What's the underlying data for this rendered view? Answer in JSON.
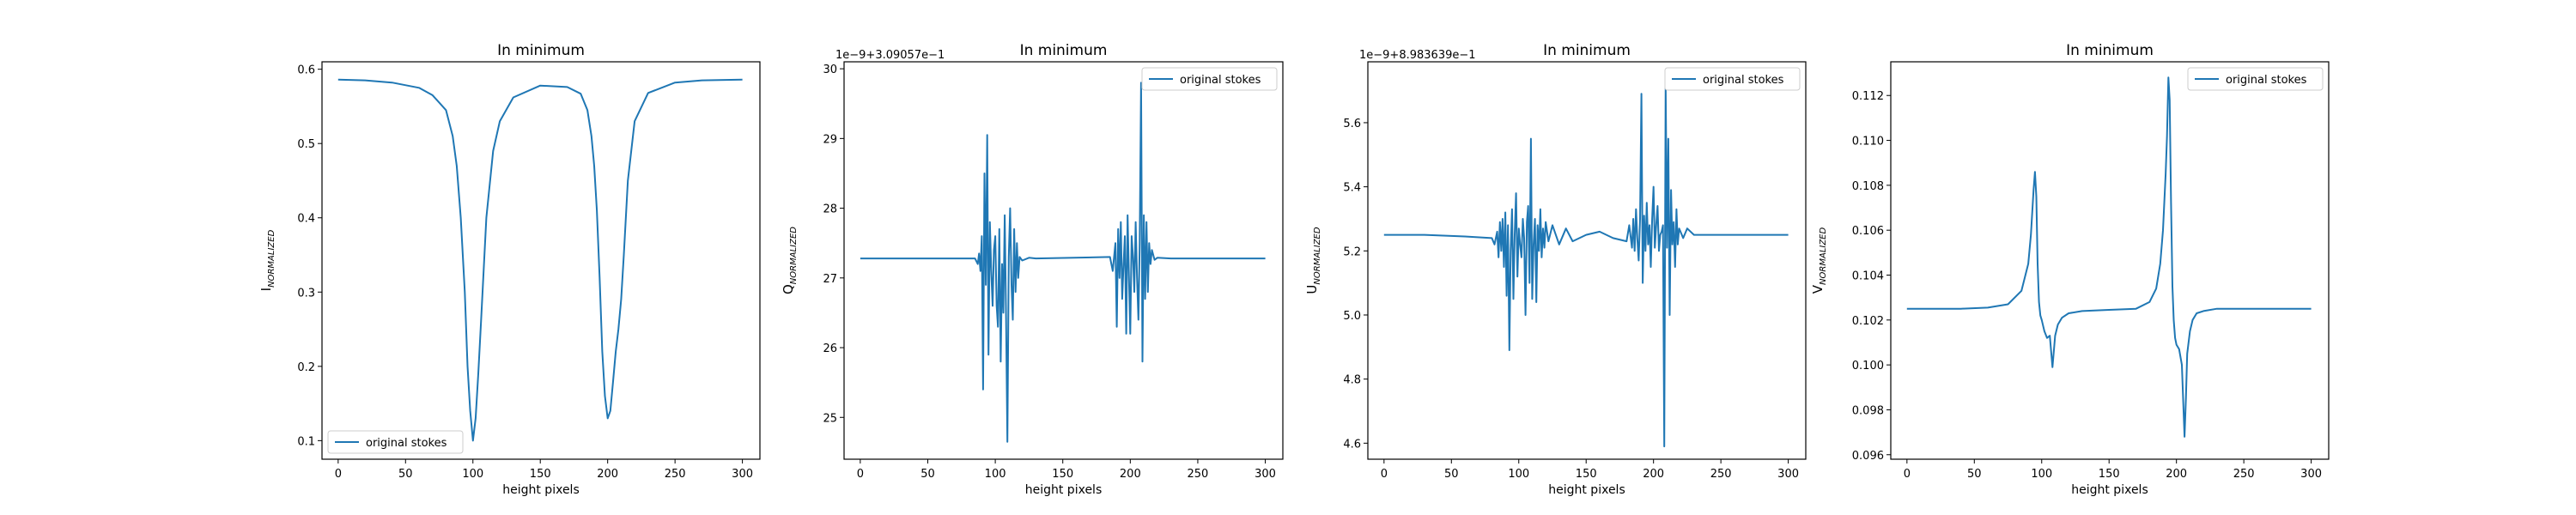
{
  "chart_data": [
    {
      "type": "line",
      "title": "In minimum",
      "xlabel": "height pixels",
      "ylabel_main": "I",
      "ylabel_sub": "NORMALIZED",
      "offset_text": "",
      "xlim": [
        -12,
        313
      ],
      "ylim": [
        0.075,
        0.61
      ],
      "xticks": [
        0,
        50,
        100,
        150,
        200,
        250,
        300
      ],
      "yticks": [
        0.1,
        0.2,
        0.3,
        0.4,
        0.5,
        0.6
      ],
      "ytick_labels": [
        "0.1",
        "0.2",
        "0.3",
        "0.4",
        "0.5",
        "0.6"
      ],
      "legend": "lower-left",
      "series": [
        {
          "name": "original stokes",
          "color": "#1f77b4",
          "x": [
            0,
            20,
            40,
            60,
            70,
            80,
            85,
            88,
            91,
            94,
            96,
            98,
            100,
            102,
            104,
            106,
            108,
            110,
            115,
            120,
            130,
            150,
            170,
            180,
            185,
            188,
            190,
            192,
            194,
            196,
            198,
            200,
            202,
            204,
            206,
            208,
            210,
            212,
            215,
            220,
            230,
            250,
            270,
            300
          ],
          "y": [
            0.586,
            0.585,
            0.582,
            0.575,
            0.565,
            0.545,
            0.51,
            0.47,
            0.4,
            0.3,
            0.2,
            0.14,
            0.1,
            0.13,
            0.19,
            0.26,
            0.33,
            0.4,
            0.49,
            0.53,
            0.562,
            0.578,
            0.576,
            0.567,
            0.545,
            0.51,
            0.47,
            0.41,
            0.32,
            0.22,
            0.16,
            0.13,
            0.14,
            0.18,
            0.22,
            0.25,
            0.29,
            0.35,
            0.45,
            0.53,
            0.568,
            0.582,
            0.585,
            0.586
          ]
        }
      ]
    },
    {
      "type": "line",
      "title": "In minimum",
      "xlabel": "height pixels",
      "ylabel_main": "Q",
      "ylabel_sub": "NORMALIZED",
      "offset_text": "1e−9+3.09057e−1",
      "xlim": [
        -12,
        313
      ],
      "ylim": [
        24.4,
        30.1
      ],
      "xticks": [
        0,
        50,
        100,
        150,
        200,
        250,
        300
      ],
      "yticks": [
        25,
        26,
        27,
        28,
        29,
        30
      ],
      "ytick_labels": [
        "25",
        "26",
        "27",
        "28",
        "29",
        "30"
      ],
      "legend": "upper-right",
      "series": [
        {
          "name": "original stokes",
          "color": "#1f77b4",
          "x": [
            0,
            85,
            87,
            88,
            89,
            90,
            91,
            92,
            93,
            94,
            95,
            96,
            97,
            98,
            99,
            100,
            101,
            102,
            103,
            104,
            105,
            106,
            107,
            108,
            109,
            110,
            111,
            112,
            113,
            114,
            115,
            116,
            117,
            118,
            120,
            125,
            130,
            185,
            187,
            189,
            190,
            191,
            192,
            193,
            194,
            195,
            196,
            197,
            198,
            199,
            200,
            201,
            202,
            203,
            204,
            205,
            206,
            207,
            208,
            209,
            210,
            211,
            212,
            213,
            214,
            215,
            216,
            218,
            220,
            230,
            300
          ],
          "y": [
            27.28,
            27.28,
            27.2,
            27.35,
            27.1,
            27.6,
            25.4,
            28.5,
            26.9,
            29.05,
            25.9,
            27.8,
            27.1,
            26.6,
            27.4,
            27.6,
            26.6,
            26.3,
            27.7,
            25.8,
            27.2,
            26.5,
            27.9,
            26.4,
            24.65,
            27.3,
            28.0,
            26.9,
            26.4,
            27.7,
            26.8,
            27.5,
            27.0,
            27.3,
            27.25,
            27.29,
            27.28,
            27.3,
            27.1,
            27.5,
            26.3,
            27.7,
            27.0,
            27.8,
            26.7,
            27.2,
            27.6,
            26.2,
            27.9,
            27.0,
            26.2,
            27.6,
            27.3,
            26.8,
            27.8,
            27.0,
            26.4,
            27.5,
            29.8,
            25.8,
            27.9,
            26.7,
            27.8,
            26.8,
            27.5,
            27.2,
            27.4,
            27.26,
            27.29,
            27.28,
            27.28
          ]
        }
      ]
    },
    {
      "type": "line",
      "title": "In minimum",
      "xlabel": "height pixels",
      "ylabel_main": "U",
      "ylabel_sub": "NORMALIZED",
      "offset_text": "1e−9+8.983639e−1",
      "xlim": [
        -12,
        313
      ],
      "ylim": [
        4.55,
        5.79
      ],
      "xticks": [
        0,
        50,
        100,
        150,
        200,
        250,
        300
      ],
      "yticks": [
        4.6,
        4.8,
        5.0,
        5.2,
        5.4,
        5.6
      ],
      "ytick_labels": [
        "4.6",
        "4.8",
        "5.0",
        "5.2",
        "5.4",
        "5.6"
      ],
      "legend": "upper-right",
      "series": [
        {
          "name": "original stokes",
          "color": "#1f77b4",
          "x": [
            0,
            30,
            60,
            80,
            82,
            84,
            85,
            86,
            87,
            88,
            89,
            90,
            91,
            92,
            93,
            94,
            95,
            96,
            97,
            98,
            99,
            100,
            101,
            102,
            103,
            104,
            105,
            106,
            107,
            108,
            109,
            110,
            111,
            112,
            113,
            114,
            115,
            116,
            117,
            118,
            119,
            120,
            122,
            125,
            130,
            135,
            140,
            150,
            160,
            170,
            180,
            182,
            184,
            185,
            186,
            187,
            188,
            189,
            190,
            191,
            192,
            193,
            194,
            195,
            196,
            197,
            198,
            199,
            200,
            201,
            202,
            203,
            204,
            205,
            206,
            207,
            208,
            209,
            210,
            211,
            212,
            213,
            214,
            215,
            216,
            217,
            218,
            219,
            220,
            222,
            225,
            230,
            240,
            260,
            280,
            300
          ],
          "y": [
            5.25,
            5.25,
            5.245,
            5.24,
            5.22,
            5.26,
            5.18,
            5.29,
            5.2,
            5.3,
            5.15,
            5.32,
            5.06,
            5.28,
            4.89,
            5.2,
            5.33,
            5.05,
            5.25,
            5.38,
            5.12,
            5.27,
            5.22,
            5.18,
            5.3,
            5.24,
            5.0,
            5.29,
            5.34,
            5.1,
            5.55,
            5.05,
            5.22,
            5.3,
            5.04,
            5.28,
            5.2,
            5.33,
            5.18,
            5.27,
            5.21,
            5.29,
            5.23,
            5.28,
            5.22,
            5.27,
            5.23,
            5.25,
            5.26,
            5.24,
            5.23,
            5.28,
            5.21,
            5.3,
            5.2,
            5.33,
            5.24,
            5.17,
            5.3,
            5.69,
            5.1,
            5.31,
            5.2,
            5.35,
            5.22,
            5.28,
            5.15,
            5.3,
            5.4,
            5.21,
            5.28,
            5.34,
            5.2,
            5.25,
            5.26,
            5.28,
            4.59,
            5.72,
            5.21,
            5.55,
            5.0,
            5.39,
            5.22,
            5.29,
            5.15,
            5.33,
            5.22,
            5.27,
            5.26,
            5.24,
            5.27,
            5.25,
            5.25,
            5.25,
            5.25,
            5.25
          ]
        }
      ]
    },
    {
      "type": "line",
      "title": "In minimum",
      "xlabel": "height pixels",
      "ylabel_main": "V",
      "ylabel_sub": "NORMALIZED",
      "offset_text": "",
      "xlim": [
        -12,
        313
      ],
      "ylim": [
        0.0958,
        0.1135
      ],
      "xticks": [
        0,
        50,
        100,
        150,
        200,
        250,
        300
      ],
      "yticks": [
        0.096,
        0.098,
        0.1,
        0.102,
        0.104,
        0.106,
        0.108,
        0.11,
        0.112
      ],
      "ytick_labels": [
        "0.096",
        "0.098",
        "0.100",
        "0.102",
        "0.104",
        "0.106",
        "0.108",
        "0.110",
        "0.112"
      ],
      "legend": "upper-right",
      "series": [
        {
          "name": "original stokes",
          "color": "#1f77b4",
          "x": [
            0,
            40,
            60,
            75,
            85,
            90,
            92,
            94,
            95,
            96,
            97,
            98,
            99,
            100,
            102,
            104,
            106,
            108,
            110,
            112,
            115,
            120,
            130,
            150,
            170,
            180,
            185,
            188,
            190,
            192,
            193,
            194,
            195,
            196,
            197,
            198,
            199,
            200,
            202,
            204,
            206,
            207,
            208,
            210,
            212,
            215,
            220,
            230,
            250,
            300
          ],
          "y": [
            0.1025,
            0.1025,
            0.10255,
            0.1027,
            0.1033,
            0.1045,
            0.1058,
            0.1078,
            0.1086,
            0.1075,
            0.1045,
            0.1028,
            0.1022,
            0.102,
            0.1015,
            0.1012,
            0.1013,
            0.0999,
            0.1013,
            0.1018,
            0.1021,
            0.1023,
            0.1024,
            0.10245,
            0.1025,
            0.1028,
            0.1034,
            0.1045,
            0.106,
            0.1085,
            0.1102,
            0.1128,
            0.1118,
            0.1072,
            0.1035,
            0.102,
            0.1012,
            0.1009,
            0.1007,
            0.1,
            0.0968,
            0.0985,
            0.1005,
            0.1015,
            0.102,
            0.1023,
            0.1024,
            0.1025,
            0.1025,
            0.1025
          ]
        }
      ]
    }
  ]
}
